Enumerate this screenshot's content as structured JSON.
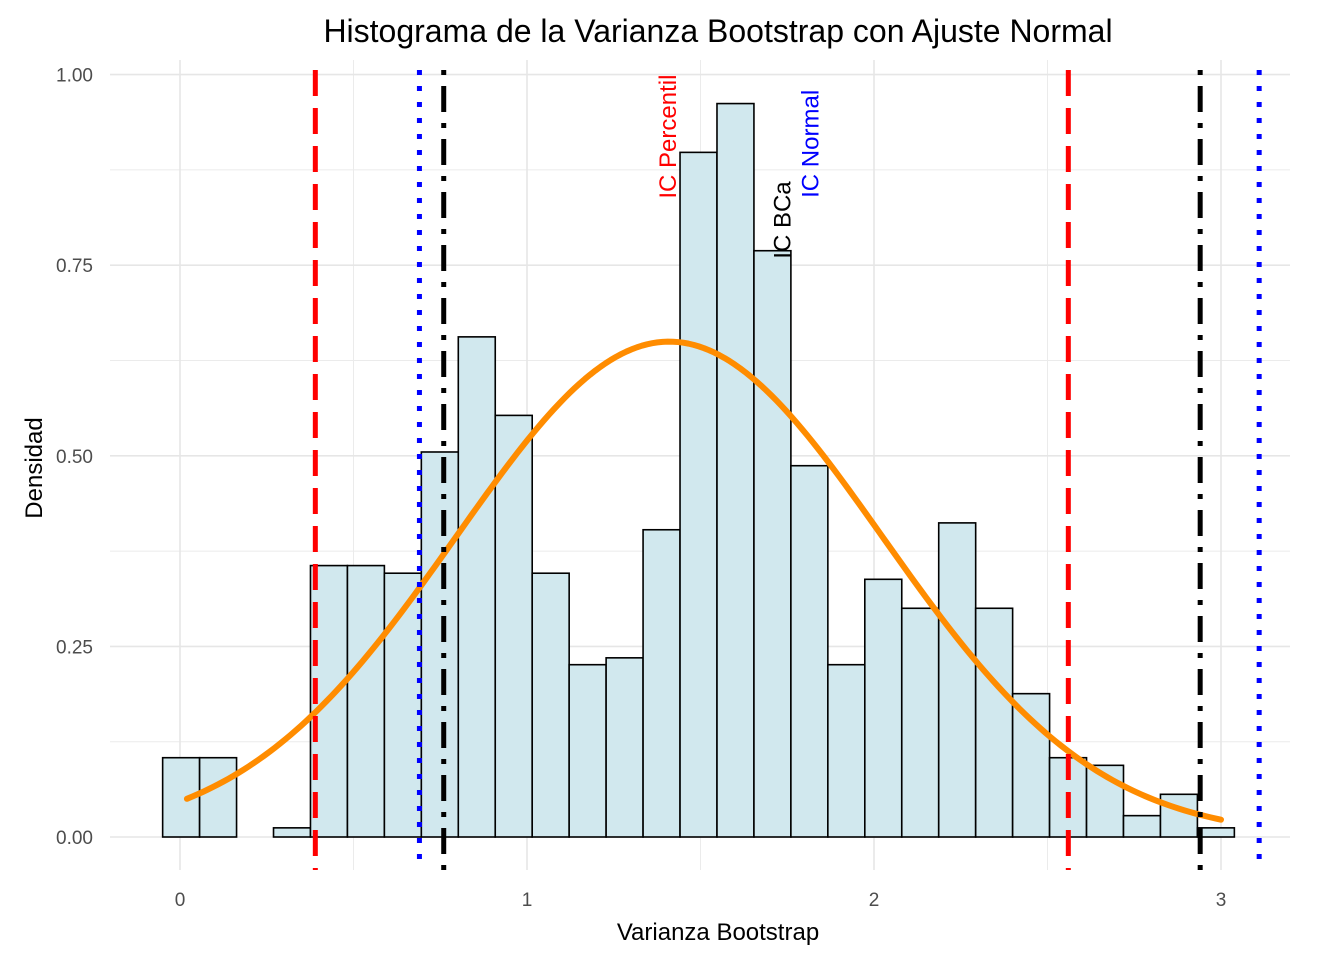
{
  "chart_data": {
    "type": "histogram",
    "title": "Histograma de la Varianza Bootstrap con Ajuste Normal",
    "xlabel": "Varianza Bootstrap",
    "ylabel": "Densidad",
    "xlim": [
      -0.15,
      3.18
    ],
    "ylim": [
      -0.04,
      1.01
    ],
    "x_ticks": [
      0,
      1,
      2,
      3
    ],
    "x_tick_labels": [
      "0",
      "1",
      "2",
      "3"
    ],
    "y_ticks": [
      0,
      0.25,
      0.5,
      0.75,
      1.0
    ],
    "y_tick_labels": [
      "0.00",
      "0.25",
      "0.50",
      "0.75",
      "1.00"
    ],
    "grid": true,
    "bin_width": 0.1065,
    "first_bin_left": -0.05,
    "bar_fill": "#d1e8ee",
    "bar_stroke": "#000000",
    "densities": [
      0.104,
      0.104,
      0.0,
      0.012,
      0.356,
      0.356,
      0.346,
      0.505,
      0.656,
      0.553,
      0.346,
      0.226,
      0.235,
      0.403,
      0.898,
      0.962,
      0.769,
      0.487,
      0.226,
      0.338,
      0.3,
      0.412,
      0.3,
      0.188,
      0.104,
      0.094,
      0.028,
      0.056,
      0.012
    ],
    "normal_fit": {
      "mean": 1.41,
      "sd": 0.614,
      "x_range": [
        0.02,
        3.0
      ],
      "color": "#ff8c00"
    },
    "ci_lines": [
      {
        "name": "IC Percentil",
        "lower": 0.39,
        "upper": 2.56,
        "color": "#ff0000",
        "style": "dashed"
      },
      {
        "name": "IC BCa",
        "lower": 0.76,
        "upper": 2.94,
        "color": "#000000",
        "style": "dotdash"
      },
      {
        "name": "IC Normal",
        "lower": 0.69,
        "upper": 3.11,
        "color": "#0000ff",
        "style": "dotted"
      }
    ],
    "annotations": [
      {
        "text": "IC Percentil",
        "x": 1.43,
        "y": 1.0,
        "color": "#ff0000"
      },
      {
        "text": "IC BCa",
        "x": 1.76,
        "y": 0.86,
        "color": "#000000"
      },
      {
        "text": "IC Normal",
        "x": 1.84,
        "y": 0.98,
        "color": "#0000ff"
      }
    ]
  }
}
